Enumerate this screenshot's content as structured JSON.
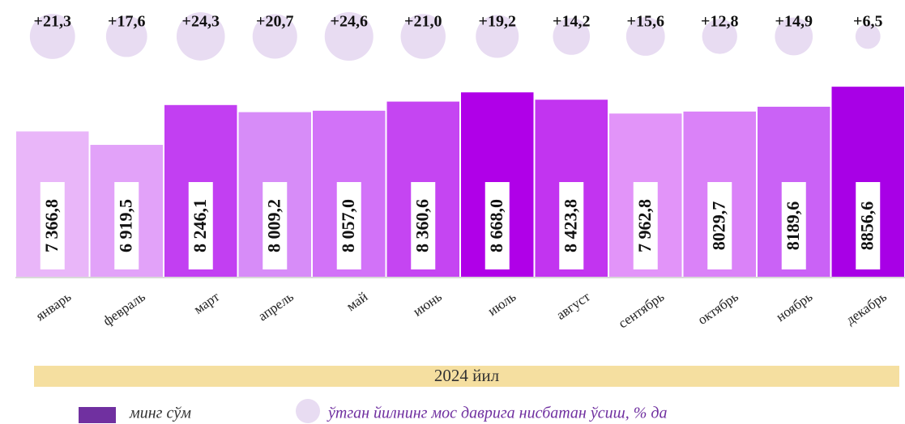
{
  "chart_data": {
    "type": "bar",
    "categories": [
      "январь",
      "февраль",
      "март",
      "апрель",
      "май",
      "июнь",
      "июль",
      "август",
      "сентябрь",
      "октябрь",
      "ноябрь",
      "декабрь"
    ],
    "series": [
      {
        "name": "минг сўм",
        "color": "#7030a0",
        "colors": [
          "#e9b6f9",
          "#e2a2f9",
          "#c23ff2",
          "#d78cf8",
          "#d272f8",
          "#c545f2",
          "#b000e8",
          "#c234f0",
          "#e294f9",
          "#da82f8",
          "#ca62f6",
          "#a800e6"
        ],
        "values": [
          7366.8,
          6919.5,
          8246.1,
          8009.2,
          8057.0,
          8360.6,
          8668.0,
          8423.8,
          7962.8,
          8029.7,
          8189.6,
          8856.6
        ],
        "value_labels": [
          "7 366,8",
          "6 919,5",
          "8 246,1",
          "8 009,2",
          "8 057,0",
          "8 360,6",
          "8 668,0",
          "8 423,8",
          "7 962,8",
          "8029,7",
          "8189,6",
          "8856,6"
        ]
      },
      {
        "name": "ўтган йилнинг мос даврига нисбатан ўсиш, % да",
        "color": "#e8dcf2",
        "values": [
          21.3,
          17.6,
          24.3,
          20.7,
          24.6,
          21.0,
          19.2,
          14.2,
          15.6,
          12.8,
          14.9,
          6.5
        ],
        "value_labels": [
          "+21,3",
          "+17,6",
          "+24,3",
          "+20,7",
          "+24,6",
          "+21,0",
          "+19,2",
          "+14,2",
          "+15,6",
          "+12,8",
          "+14,9",
          "+6,5"
        ]
      }
    ],
    "xlabel": "2024 йил",
    "ylim": [
      2500,
      9400
    ]
  }
}
